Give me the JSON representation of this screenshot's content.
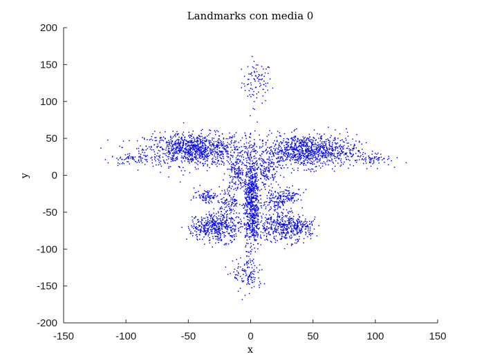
{
  "chart_data": {
    "type": "scatter",
    "title": "Landmarks con media 0",
    "xlabel": "x",
    "ylabel": "y",
    "xlim": [
      -150,
      150
    ],
    "ylim": [
      -200,
      200
    ],
    "xticks": [
      -150,
      -100,
      -50,
      0,
      50,
      100,
      150
    ],
    "yticks": [
      -200,
      -150,
      -100,
      -50,
      0,
      50,
      100,
      150,
      200
    ],
    "marker_color": "#0000ff",
    "grid": false,
    "legend": "none",
    "clusters": [
      {
        "name": "top-beak",
        "cx": 5,
        "cy": 126,
        "sx": 6,
        "sy": 14,
        "n": 90
      },
      {
        "name": "left-wing",
        "cx": -45,
        "cy": 35,
        "sx": 20,
        "sy": 11,
        "n": 1000
      },
      {
        "name": "left-wing-tip",
        "cx": -95,
        "cy": 22,
        "sx": 9,
        "sy": 3,
        "n": 60
      },
      {
        "name": "right-wing",
        "cx": 45,
        "cy": 33,
        "sx": 20,
        "sy": 11,
        "n": 1000
      },
      {
        "name": "right-wing-tip",
        "cx": 95,
        "cy": 21,
        "sx": 9,
        "sy": 4,
        "n": 60
      },
      {
        "name": "center-column",
        "cx": 1,
        "cy": -35,
        "sx": 3,
        "sy": 35,
        "n": 700
      },
      {
        "name": "left-inner-upper",
        "cx": -11,
        "cy": 5,
        "sx": 4,
        "sy": 10,
        "n": 120
      },
      {
        "name": "left-inner-mid",
        "cx": -17,
        "cy": -35,
        "sx": 5,
        "sy": 10,
        "n": 120
      },
      {
        "name": "right-inner-upper",
        "cx": 13,
        "cy": 5,
        "sx": 5,
        "sy": 10,
        "n": 120
      },
      {
        "name": "right-inner-mid",
        "cx": 20,
        "cy": -35,
        "sx": 5,
        "sy": 10,
        "n": 120
      },
      {
        "name": "left-lower-lobe",
        "cx": -25,
        "cy": -70,
        "sx": 9,
        "sy": 10,
        "n": 380
      },
      {
        "name": "right-lower-lobe",
        "cx": 25,
        "cy": -70,
        "sx": 11,
        "sy": 10,
        "n": 380
      },
      {
        "name": "left-outer-lower",
        "cx": -40,
        "cy": -72,
        "sx": 7,
        "sy": 6,
        "n": 90
      },
      {
        "name": "right-outer-lower",
        "cx": 40,
        "cy": -70,
        "sx": 7,
        "sy": 6,
        "n": 90
      },
      {
        "name": "left-upper-shoulder",
        "cx": -35,
        "cy": -28,
        "sx": 5,
        "sy": 5,
        "n": 80
      },
      {
        "name": "right-upper-shoulder",
        "cx": 32,
        "cy": -28,
        "sx": 5,
        "sy": 5,
        "n": 80
      },
      {
        "name": "bottom-tail",
        "cx": -2,
        "cy": -135,
        "sx": 6,
        "sy": 12,
        "n": 110
      }
    ]
  }
}
